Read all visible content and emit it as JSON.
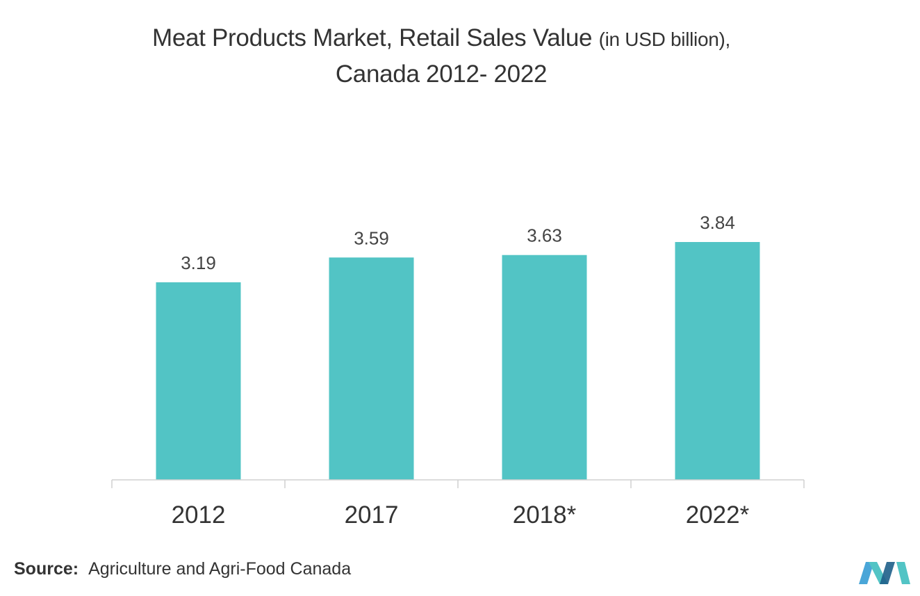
{
  "chart_data": {
    "type": "bar",
    "title_main": "Meat Products Market, Retail Sales Value",
    "title_unit": "(in USD billion),",
    "title_line2": "Canada 2012- 2022",
    "categories": [
      "2012",
      "2017",
      "2018*",
      "2022*"
    ],
    "values": [
      3.19,
      3.59,
      3.63,
      3.84
    ],
    "value_labels": [
      "3.19",
      "3.59",
      "3.63",
      "3.84"
    ],
    "ylim": [
      0,
      3.84
    ],
    "grid": false,
    "legend": "none",
    "bar_color": "#52c4c5",
    "axis_color": "#d0d0d0"
  },
  "source": {
    "label": "Source:",
    "text": "Agriculture and Agri-Food Canada"
  },
  "logo": {
    "icon": "mordor-intelligence-logo",
    "colors": [
      "#4aa6d8",
      "#52c4c5",
      "#1e5f8a"
    ]
  }
}
